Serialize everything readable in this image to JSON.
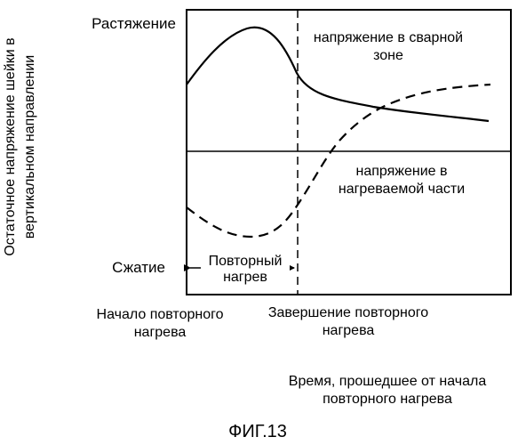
{
  "figure": {
    "caption": "ФИГ.13",
    "y_axis_label_line1": "Остаточное напряжение шейки в",
    "y_axis_label_line2": "вертикальном направлении",
    "tension_label": "Растяжение",
    "compression_label": "Сжатие",
    "reheat_interval_label_line1": "Повторный",
    "reheat_interval_label_line2": "нагрев",
    "reheat_start_label_line1": "Начало повторного",
    "reheat_start_label_line2": "нагрева",
    "reheat_end_label_line1": "Завершение повторного",
    "reheat_end_label_line2": "нагрева",
    "time_axis_label_line1": "Время, прошедшее от начала",
    "time_axis_label_line2": "повторного нагрева",
    "weld_zone_curve_label_line1": "напряжение в сварной",
    "weld_zone_curve_label_line2": "зоне",
    "heated_part_curve_label_line1": "напряжение в",
    "heated_part_curve_label_line2": "нагреваемой части"
  },
  "curves": [
    {
      "name": "weld-zone-stress",
      "line_style": "solid"
    },
    {
      "name": "heated-part-stress",
      "line_style": "dashed"
    }
  ],
  "colors": {
    "line": "#000000",
    "background": "#ffffff"
  }
}
